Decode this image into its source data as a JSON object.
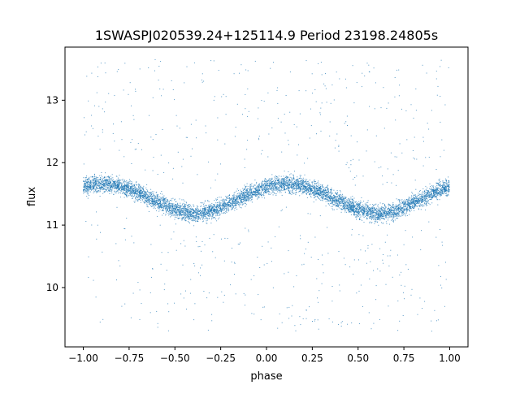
{
  "chart_data": {
    "type": "scatter",
    "title": "1SWASPJ020539.24+125114.9 Period 23198.24805s",
    "xlabel": "phase",
    "ylabel": "flux",
    "xlim": [
      -1.1,
      1.1
    ],
    "ylim": [
      9.05,
      13.85
    ],
    "x_ticks": [
      -1.0,
      -0.75,
      -0.5,
      -0.25,
      0.0,
      0.25,
      0.5,
      0.75,
      1.0
    ],
    "x_tick_labels": [
      "−1.00",
      "−0.75",
      "−0.50",
      "−0.25",
      "0.00",
      "0.25",
      "0.50",
      "0.75",
      "1.00"
    ],
    "y_ticks": [
      10,
      11,
      12,
      13
    ],
    "y_tick_labels": [
      "10",
      "11",
      "12",
      "13"
    ],
    "grid": false,
    "legend": "none",
    "point_color": "#1f77b4",
    "series": [
      {
        "x_range": [
          -1.0,
          1.0
        ],
        "trend": {
          "phase": [
            -1.0,
            -0.9,
            -0.8,
            -0.7,
            -0.6,
            -0.5,
            -0.4,
            -0.3,
            -0.2,
            -0.1,
            0.0,
            0.1,
            0.2,
            0.3,
            0.4,
            0.5,
            0.6,
            0.7,
            0.8,
            0.9,
            1.0
          ],
          "flux": [
            11.62,
            11.66,
            11.63,
            11.52,
            11.38,
            11.25,
            11.18,
            11.22,
            11.35,
            11.5,
            11.62,
            11.66,
            11.63,
            11.52,
            11.38,
            11.25,
            11.18,
            11.22,
            11.35,
            11.5,
            11.62
          ]
        },
        "band_halfwidth": 0.17,
        "outlier_flux_range": [
          9.3,
          13.65
        ]
      }
    ]
  }
}
